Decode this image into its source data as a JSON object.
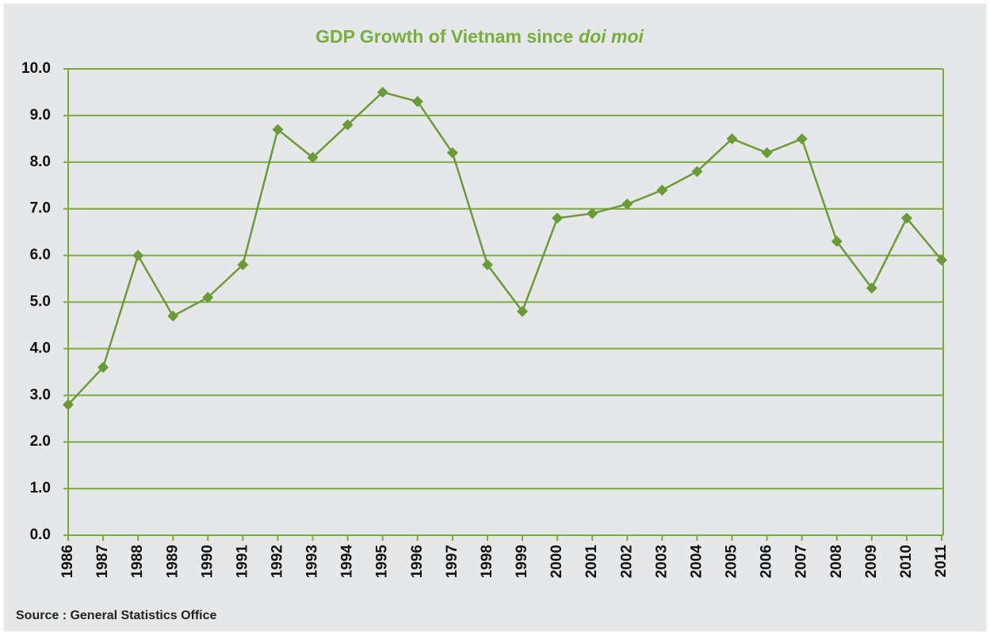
{
  "chart_data": {
    "type": "line",
    "title": [
      "GDP Growth of Vietnam since",
      "doi moi"
    ],
    "source": "Source : General Statistics Office",
    "categories": [
      "1986",
      "1987",
      "1988",
      "1989",
      "1990",
      "1991",
      "1992",
      "1993",
      "1994",
      "1995",
      "1996",
      "1997",
      "1998",
      "1999",
      "2000",
      "2001",
      "2002",
      "2003",
      "2004",
      "2005",
      "2006",
      "2007",
      "2008",
      "2009",
      "2010",
      "2011"
    ],
    "values": [
      2.8,
      3.6,
      6.0,
      4.7,
      5.1,
      5.8,
      8.7,
      8.1,
      8.8,
      9.5,
      9.3,
      8.2,
      5.8,
      4.8,
      6.8,
      6.9,
      7.1,
      7.4,
      7.8,
      8.5,
      8.2,
      8.5,
      6.3,
      5.3,
      6.8,
      5.9
    ],
    "color": "#6b9b37",
    "ylim": [
      0,
      10
    ],
    "yticks": [
      {
        "value": 0,
        "label": "0.0"
      },
      {
        "value": 1,
        "label": "1.0"
      },
      {
        "value": 2,
        "label": "2.0"
      },
      {
        "value": 3,
        "label": "3.0"
      },
      {
        "value": 4,
        "label": "4.0"
      },
      {
        "value": 5,
        "label": "5.0"
      },
      {
        "value": 6,
        "label": "6.0"
      },
      {
        "value": 7,
        "label": "7.0"
      },
      {
        "value": 8,
        "label": "8.0"
      },
      {
        "value": 9,
        "label": "9.0"
      },
      {
        "value": 10,
        "label": "10.0"
      }
    ],
    "grid": true
  }
}
